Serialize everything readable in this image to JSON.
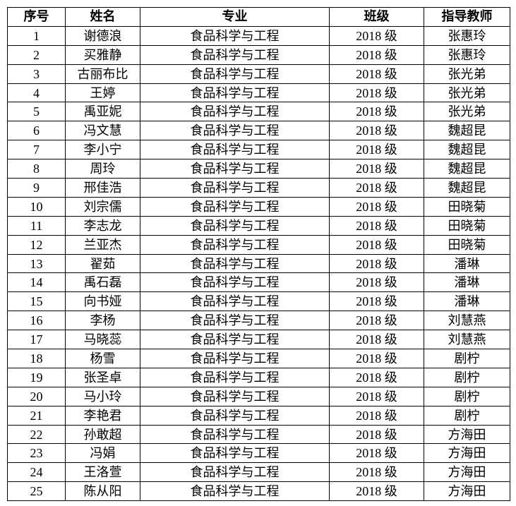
{
  "table": {
    "headers": [
      "序号",
      "姓名",
      "专业",
      "班级",
      "指导教师"
    ],
    "rows": [
      [
        "1",
        "谢德浪",
        "食品科学与工程",
        "2018 级",
        "张惠玲"
      ],
      [
        "2",
        "买雅静",
        "食品科学与工程",
        "2018 级",
        "张惠玲"
      ],
      [
        "3",
        "古丽布比",
        "食品科学与工程",
        "2018 级",
        "张光弟"
      ],
      [
        "4",
        "王婷",
        "食品科学与工程",
        "2018 级",
        "张光弟"
      ],
      [
        "5",
        "禹亚妮",
        "食品科学与工程",
        "2018 级",
        "张光弟"
      ],
      [
        "6",
        "冯文慧",
        "食品科学与工程",
        "2018 级",
        "魏超昆"
      ],
      [
        "7",
        "李小宁",
        "食品科学与工程",
        "2018 级",
        "魏超昆"
      ],
      [
        "8",
        "周玲",
        "食品科学与工程",
        "2018 级",
        "魏超昆"
      ],
      [
        "9",
        "邢佳浩",
        "食品科学与工程",
        "2018 级",
        "魏超昆"
      ],
      [
        "10",
        "刘宗儒",
        "食品科学与工程",
        "2018 级",
        "田晓菊"
      ],
      [
        "11",
        "李志龙",
        "食品科学与工程",
        "2018 级",
        "田晓菊"
      ],
      [
        "12",
        "兰亚杰",
        "食品科学与工程",
        "2018 级",
        "田晓菊"
      ],
      [
        "13",
        "翟茹",
        "食品科学与工程",
        "2018 级",
        "潘琳"
      ],
      [
        "14",
        "禹石磊",
        "食品科学与工程",
        "2018 级",
        "潘琳"
      ],
      [
        "15",
        "向书娅",
        "食品科学与工程",
        "2018 级",
        "潘琳"
      ],
      [
        "16",
        "李杨",
        "食品科学与工程",
        "2018 级",
        "刘慧燕"
      ],
      [
        "17",
        "马晓蕊",
        "食品科学与工程",
        "2018 级",
        "刘慧燕"
      ],
      [
        "18",
        "杨雪",
        "食品科学与工程",
        "2018 级",
        "剧柠"
      ],
      [
        "19",
        "张圣卓",
        "食品科学与工程",
        "2018 级",
        "剧柠"
      ],
      [
        "20",
        "马小玲",
        "食品科学与工程",
        "2018 级",
        "剧柠"
      ],
      [
        "21",
        "李艳君",
        "食品科学与工程",
        "2018 级",
        "剧柠"
      ],
      [
        "22",
        "孙敢超",
        "食品科学与工程",
        "2018 级",
        "方海田"
      ],
      [
        "23",
        "冯娟",
        "食品科学与工程",
        "2018 级",
        "方海田"
      ],
      [
        "24",
        "王洛萱",
        "食品科学与工程",
        "2018 级",
        "方海田"
      ],
      [
        "25",
        "陈从阳",
        "食品科学与工程",
        "2018 级",
        "方海田"
      ]
    ]
  }
}
